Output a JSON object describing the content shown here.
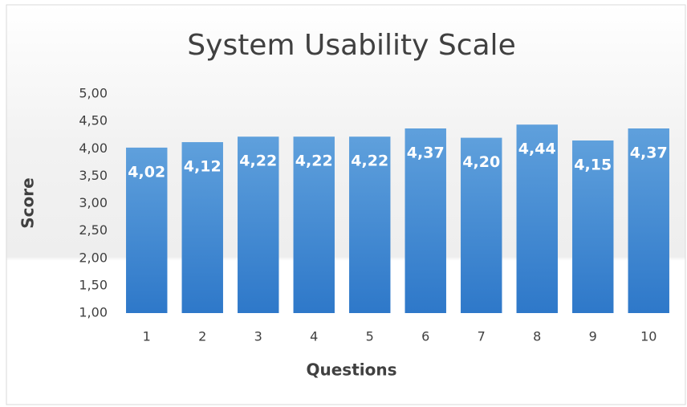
{
  "chart_data": {
    "type": "bar",
    "title": "System Usability Scale",
    "x_label": "Questions",
    "y_label": "Score",
    "categories": [
      "1",
      "2",
      "3",
      "4",
      "5",
      "6",
      "7",
      "8",
      "9",
      "10"
    ],
    "values": [
      4.02,
      4.12,
      4.22,
      4.22,
      4.22,
      4.37,
      4.2,
      4.44,
      4.15,
      4.37
    ],
    "value_labels": [
      "4,02",
      "4,12",
      "4,22",
      "4,22",
      "4,22",
      "4,37",
      "4,20",
      "4,44",
      "4,15",
      "4,37"
    ],
    "color": "#3a86d4",
    "ylim": [
      1,
      5
    ],
    "yticks": [
      {
        "value": 1,
        "label": "1,00"
      },
      {
        "value": 1.5,
        "label": "1,50"
      },
      {
        "value": 2,
        "label": "2,00"
      },
      {
        "value": 2.5,
        "label": "2,50"
      },
      {
        "value": 3,
        "label": "3,00"
      },
      {
        "value": 3.5,
        "label": "3,50"
      },
      {
        "value": 4,
        "label": "4,00"
      },
      {
        "value": 4.5,
        "label": "4,50"
      },
      {
        "value": 5,
        "label": "5,00"
      }
    ],
    "grid": false
  }
}
